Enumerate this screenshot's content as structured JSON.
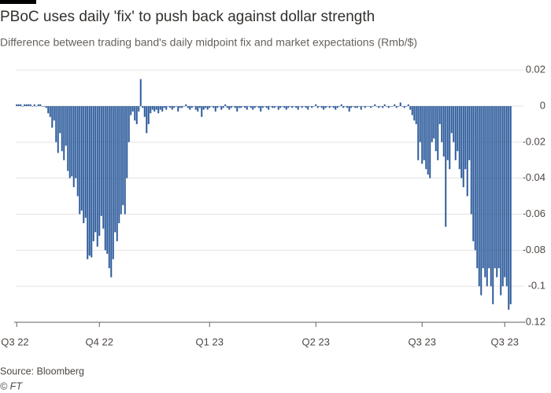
{
  "chart_data": {
    "type": "bar",
    "title": "PBoC uses daily 'fix' to push back against dollar strength",
    "subtitle": "Difference between trading band's daily midpoint fix and market expectations (Rmb/$)",
    "source": "Source: Bloomberg",
    "credit": "© FT",
    "color": "#2d5b9b",
    "grid": true,
    "ylim": [
      -0.12,
      0.024
    ],
    "yticks": [
      0.02,
      0,
      -0.02,
      -0.04,
      -0.06,
      -0.08,
      -0.1,
      -0.12
    ],
    "categories": [
      "Q3 22",
      null,
      null,
      null,
      null,
      null,
      null,
      null,
      null,
      null,
      null,
      null,
      null,
      null,
      null,
      null,
      null,
      null,
      null,
      null,
      null,
      null,
      null,
      null,
      null,
      null,
      null,
      null,
      null,
      null,
      null,
      null,
      null,
      null,
      null,
      null,
      null,
      null,
      null,
      null,
      null,
      null,
      "Q4 22",
      null,
      null,
      null,
      null,
      null,
      null,
      null,
      null,
      null,
      null,
      null,
      null,
      null,
      null,
      null,
      null,
      null,
      null,
      null,
      null,
      null,
      null,
      null,
      null,
      null,
      null,
      null,
      null,
      null,
      null,
      null,
      null,
      null,
      null,
      null,
      null,
      null,
      null,
      null,
      null,
      null,
      null,
      null,
      null,
      null,
      null,
      null,
      null,
      null,
      null,
      null,
      null,
      null,
      null,
      null,
      "Q1 23",
      null,
      null,
      null,
      null,
      null,
      null,
      null,
      null,
      null,
      null,
      null,
      null,
      null,
      null,
      null,
      null,
      null,
      null,
      null,
      null,
      null,
      null,
      null,
      null,
      null,
      null,
      null,
      null,
      null,
      null,
      null,
      null,
      null,
      null,
      null,
      null,
      null,
      null,
      null,
      null,
      null,
      null,
      null,
      null,
      null,
      null,
      null,
      null,
      null,
      null,
      null,
      null,
      null,
      "Q2 23",
      null,
      null,
      null,
      null,
      null,
      null,
      null,
      null,
      null,
      null,
      null,
      null,
      null,
      null,
      null,
      null,
      null,
      null,
      null,
      null,
      null,
      null,
      null,
      null,
      null,
      null,
      null,
      null,
      null,
      null,
      null,
      null,
      null,
      null,
      null,
      null,
      null,
      null,
      null,
      null,
      null,
      null,
      null,
      null,
      null,
      null,
      null,
      null,
      null,
      null,
      null,
      null,
      null,
      "Q3 23",
      null,
      null,
      null,
      null,
      null,
      null,
      null,
      null,
      null,
      null,
      null,
      null,
      null,
      null,
      null,
      null,
      null,
      null,
      null,
      null,
      null,
      null,
      null,
      null,
      null,
      null,
      null,
      null,
      null,
      null,
      null,
      null,
      null,
      null,
      null,
      null,
      null,
      null,
      null,
      null,
      null,
      "Q3 23",
      null,
      null,
      null
    ],
    "values": [
      0.001,
      0.001,
      0.001,
      0,
      0.001,
      0.001,
      0.001,
      0.001,
      0,
      0.001,
      0,
      0.001,
      0.001,
      0,
      0,
      -0.001,
      -0.004,
      -0.006,
      -0.012,
      -0.008,
      -0.02,
      -0.026,
      -0.015,
      -0.025,
      -0.03,
      -0.022,
      -0.036,
      -0.04,
      -0.039,
      -0.045,
      -0.04,
      -0.05,
      -0.06,
      -0.058,
      -0.065,
      -0.062,
      -0.085,
      -0.083,
      -0.084,
      -0.075,
      -0.07,
      -0.078,
      -0.072,
      -0.061,
      -0.068,
      -0.08,
      -0.082,
      -0.09,
      -0.095,
      -0.085,
      -0.07,
      -0.075,
      -0.065,
      -0.06,
      -0.055,
      -0.06,
      -0.04,
      -0.02,
      -0.005,
      -0.003,
      -0.008,
      -0.01,
      -0.003,
      0.015,
      -0.001,
      -0.006,
      -0.015,
      -0.01,
      -0.004,
      -0.002,
      -0.003,
      -0.002,
      -0.004,
      -0.002,
      -0.003,
      -0.001,
      -0.002,
      0,
      -0.001,
      -0.002,
      -0.001,
      0,
      -0.003,
      -0.001,
      -0.001,
      0,
      0.001,
      -0.001,
      -0.002,
      -0.001,
      0,
      -0.002,
      -0.003,
      -0.001,
      -0.006,
      -0.002,
      -0.001,
      -0.002,
      -0.001,
      0,
      -0.001,
      -0.003,
      -0.001,
      0,
      -0.002,
      -0.001,
      0.001,
      -0.001,
      -0.002,
      -0.001,
      0,
      -0.001,
      -0.003,
      -0.001,
      -0.001,
      0,
      -0.001,
      -0.002,
      0,
      -0.001,
      -0.002,
      -0.001,
      0,
      -0.001,
      -0.003,
      -0.001,
      0,
      -0.001,
      -0.002,
      0,
      -0.001,
      -0.001,
      0,
      -0.002,
      -0.001,
      0,
      -0.001,
      -0.002,
      -0.001,
      0,
      -0.001,
      0,
      -0.001,
      -0.002,
      0,
      -0.001,
      0,
      -0.001,
      -0.002,
      0,
      -0.001,
      0,
      0.001,
      -0.001,
      0,
      -0.001,
      -0.002,
      -0.001,
      0,
      -0.001,
      0,
      -0.001,
      -0.002,
      -0.001,
      0,
      0.001,
      -0.001,
      0,
      -0.001,
      -0.003,
      -0.001,
      0,
      -0.001,
      -0.001,
      0,
      -0.002,
      0,
      -0.001,
      0,
      0,
      -0.001,
      0,
      0.001,
      0,
      -0.001,
      0,
      -0.001,
      0.001,
      0,
      -0.001,
      0,
      0,
      0.001,
      -0.001,
      0,
      0.002,
      0,
      -0.001,
      0,
      0.001,
      -0.002,
      -0.005,
      -0.008,
      -0.01,
      -0.03,
      -0.02,
      -0.032,
      -0.03,
      -0.035,
      -0.038,
      -0.04,
      -0.02,
      -0.018,
      -0.025,
      -0.03,
      -0.01,
      -0.02,
      -0.028,
      -0.067,
      -0.03,
      -0.035,
      -0.015,
      -0.02,
      -0.03,
      -0.025,
      -0.035,
      -0.04,
      -0.045,
      -0.035,
      -0.05,
      -0.03,
      -0.06,
      -0.075,
      -0.08,
      -0.09,
      -0.1,
      -0.105,
      -0.09,
      -0.095,
      -0.1,
      -0.09,
      -0.1,
      -0.11,
      -0.09,
      -0.095,
      -0.09,
      -0.105,
      -0.1,
      -0.095,
      -0.1,
      -0.113,
      -0.11
    ]
  }
}
